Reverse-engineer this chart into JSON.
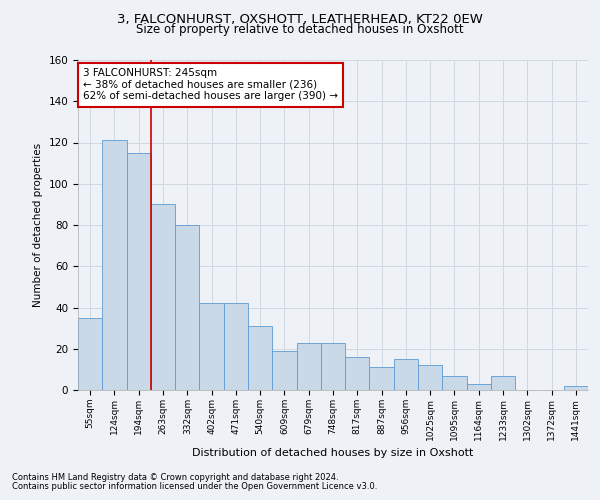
{
  "title1": "3, FALCONHURST, OXSHOTT, LEATHERHEAD, KT22 0EW",
  "title2": "Size of property relative to detached houses in Oxshott",
  "xlabel": "Distribution of detached houses by size in Oxshott",
  "ylabel": "Number of detached properties",
  "categories": [
    "55sqm",
    "124sqm",
    "194sqm",
    "263sqm",
    "332sqm",
    "402sqm",
    "471sqm",
    "540sqm",
    "609sqm",
    "679sqm",
    "748sqm",
    "817sqm",
    "887sqm",
    "956sqm",
    "1025sqm",
    "1095sqm",
    "1164sqm",
    "1233sqm",
    "1302sqm",
    "1372sqm",
    "1441sqm"
  ],
  "bar_values": [
    35,
    121,
    115,
    90,
    80,
    42,
    42,
    31,
    19,
    23,
    23,
    16,
    11,
    15,
    12,
    7,
    3,
    7,
    0,
    0,
    2
  ],
  "bar_color": "#c9d9e8",
  "bar_edge_color": "#5b9bd5",
  "grid_color": "#d0d8e4",
  "vline_color": "#cc0000",
  "vline_x": 2.5,
  "annotation_text": "3 FALCONHURST: 245sqm\n← 38% of detached houses are smaller (236)\n62% of semi-detached houses are larger (390) →",
  "annotation_box_color": "#ffffff",
  "annotation_box_edge": "#cc0000",
  "footnote1": "Contains HM Land Registry data © Crown copyright and database right 2024.",
  "footnote2": "Contains public sector information licensed under the Open Government Licence v3.0.",
  "ylim": [
    0,
    160
  ],
  "title_fontsize": 9.5,
  "subtitle_fontsize": 8.5,
  "background_color": "#eef2f7"
}
